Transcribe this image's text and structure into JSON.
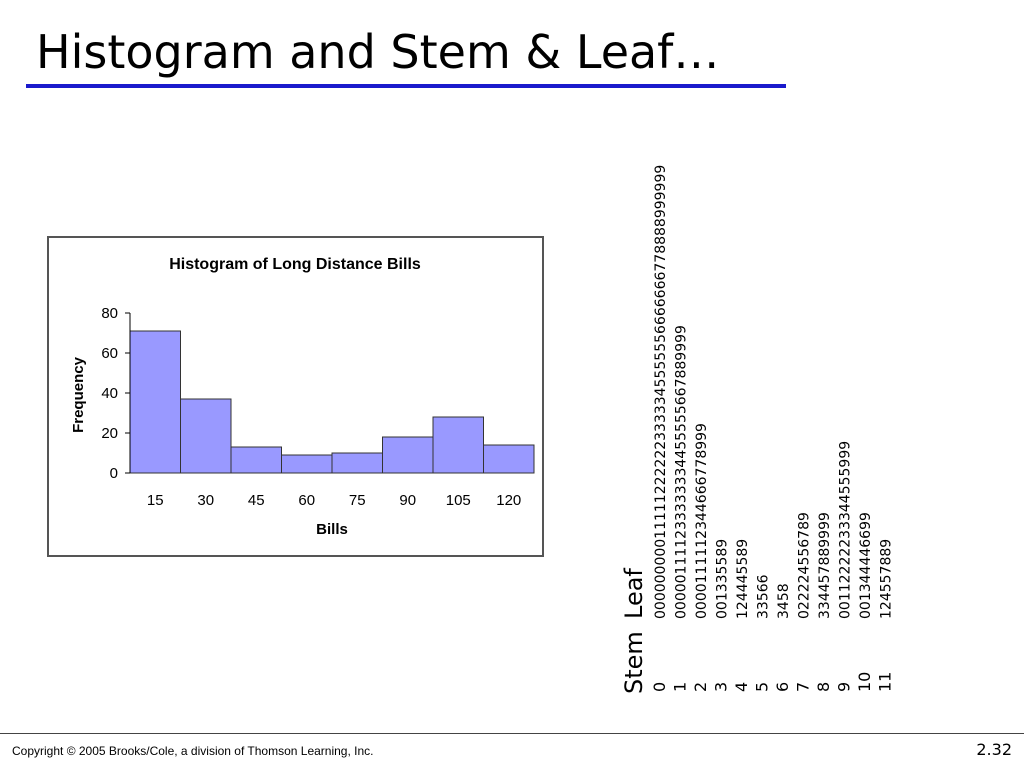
{
  "slide": {
    "title": "Histogram and Stem & Leaf…",
    "copyright": "Copyright © 2005 Brooks/Cole, a division of Thomson Learning, Inc.",
    "page_number": "2.32"
  },
  "colors": {
    "title_rule": "#1a1acc",
    "bar_fill": "#9999ff",
    "bar_stroke": "#333333"
  },
  "chart_data": {
    "type": "bar",
    "title": "Histogram of Long Distance Bills",
    "xlabel": "Bills",
    "ylabel": "Frequency",
    "categories": [
      "15",
      "30",
      "45",
      "60",
      "75",
      "90",
      "105",
      "120"
    ],
    "values": [
      71,
      37,
      13,
      9,
      10,
      18,
      28,
      14
    ],
    "yticks": [
      0,
      20,
      40,
      60,
      80
    ],
    "ylim": [
      0,
      80
    ],
    "grid": false
  },
  "stem_leaf": {
    "stem_header": "Stem",
    "leaf_header": "Leaf",
    "rows": [
      {
        "stem": "0",
        "leaf": "000000000111112222223333345555556666666778888999999"
      },
      {
        "stem": "1",
        "leaf": "000001111233333334455555667889999"
      },
      {
        "stem": "2",
        "leaf": "0000111112344666778999"
      },
      {
        "stem": "3",
        "leaf": "001335589"
      },
      {
        "stem": "4",
        "leaf": "124445589"
      },
      {
        "stem": "5",
        "leaf": "33566"
      },
      {
        "stem": "6",
        "leaf": "3458"
      },
      {
        "stem": "7",
        "leaf": "022224556789"
      },
      {
        "stem": "8",
        "leaf": "334457889999"
      },
      {
        "stem": "9",
        "leaf": "00112222233344555999"
      },
      {
        "stem": "10",
        "leaf": "001344446699"
      },
      {
        "stem": "11",
        "leaf": "124557889"
      }
    ]
  }
}
